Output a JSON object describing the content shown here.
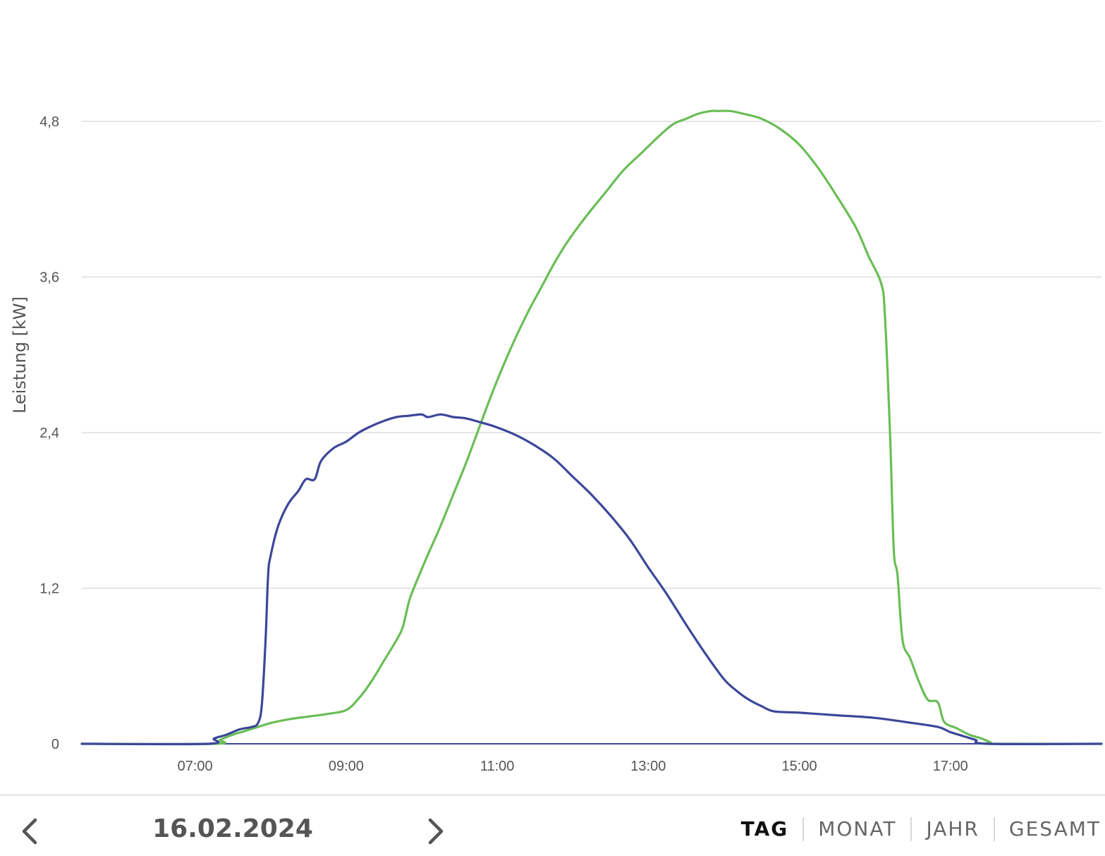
{
  "chart_data": {
    "type": "line",
    "ylabel": "Leistung [kW]",
    "xlabel": "",
    "title": "",
    "x_range": [
      "05:30",
      "19:00"
    ],
    "ylim": [
      0,
      4.8
    ],
    "y_ticks": [
      {
        "value": 0,
        "label": "0"
      },
      {
        "value": 1.2,
        "label": "1,2"
      },
      {
        "value": 2.4,
        "label": "2,4"
      },
      {
        "value": 3.6,
        "label": "3,6"
      },
      {
        "value": 4.8,
        "label": "4,8"
      }
    ],
    "x_ticks": [
      "07:00",
      "09:00",
      "11:00",
      "13:00",
      "15:00",
      "17:00"
    ],
    "grid": true,
    "series": [
      {
        "color": "#3b4799",
        "points": [
          [
            "05:30",
            0
          ],
          [
            "07:10",
            0
          ],
          [
            "07:15",
            0.04
          ],
          [
            "07:25",
            0.07
          ],
          [
            "07:35",
            0.11
          ],
          [
            "07:45",
            0.13
          ],
          [
            "07:50",
            0.16
          ],
          [
            "07:53",
            0.3
          ],
          [
            "07:56",
            0.8
          ],
          [
            "07:58",
            1.3
          ],
          [
            "08:00",
            1.45
          ],
          [
            "08:06",
            1.68
          ],
          [
            "08:14",
            1.85
          ],
          [
            "08:22",
            1.95
          ],
          [
            "08:28",
            2.04
          ],
          [
            "08:35",
            2.04
          ],
          [
            "08:40",
            2.18
          ],
          [
            "08:50",
            2.28
          ],
          [
            "09:00",
            2.33
          ],
          [
            "09:10",
            2.4
          ],
          [
            "09:20",
            2.45
          ],
          [
            "09:30",
            2.49
          ],
          [
            "09:40",
            2.52
          ],
          [
            "09:50",
            2.53
          ],
          [
            "10:00",
            2.54
          ],
          [
            "10:05",
            2.52
          ],
          [
            "10:15",
            2.54
          ],
          [
            "10:25",
            2.52
          ],
          [
            "10:35",
            2.51
          ],
          [
            "10:50",
            2.47
          ],
          [
            "11:00",
            2.44
          ],
          [
            "11:15",
            2.38
          ],
          [
            "11:30",
            2.3
          ],
          [
            "11:45",
            2.2
          ],
          [
            "12:00",
            2.06
          ],
          [
            "12:15",
            1.92
          ],
          [
            "12:30",
            1.76
          ],
          [
            "12:45",
            1.58
          ],
          [
            "13:00",
            1.36
          ],
          [
            "13:15",
            1.15
          ],
          [
            "13:30",
            0.92
          ],
          [
            "13:45",
            0.7
          ],
          [
            "14:00",
            0.5
          ],
          [
            "14:10",
            0.41
          ],
          [
            "14:20",
            0.34
          ],
          [
            "14:30",
            0.29
          ],
          [
            "14:40",
            0.25
          ],
          [
            "15:00",
            0.24
          ],
          [
            "15:30",
            0.22
          ],
          [
            "16:00",
            0.2
          ],
          [
            "16:30",
            0.16
          ],
          [
            "16:50",
            0.13
          ],
          [
            "17:00",
            0.09
          ],
          [
            "17:10",
            0.06
          ],
          [
            "17:20",
            0.03
          ],
          [
            "17:30",
            0
          ],
          [
            "19:00",
            0
          ]
        ]
      },
      {
        "color": "#6abd56",
        "points": [
          [
            "05:30",
            0
          ],
          [
            "07:15",
            0
          ],
          [
            "07:20",
            0.03
          ],
          [
            "07:30",
            0.07
          ],
          [
            "07:40",
            0.1
          ],
          [
            "07:50",
            0.13
          ],
          [
            "08:00",
            0.16
          ],
          [
            "08:15",
            0.19
          ],
          [
            "08:30",
            0.21
          ],
          [
            "08:45",
            0.23
          ],
          [
            "09:00",
            0.26
          ],
          [
            "09:10",
            0.35
          ],
          [
            "09:20",
            0.48
          ],
          [
            "09:30",
            0.64
          ],
          [
            "09:40",
            0.8
          ],
          [
            "09:45",
            0.9
          ],
          [
            "09:50",
            1.1
          ],
          [
            "09:55",
            1.23
          ],
          [
            "10:05",
            1.46
          ],
          [
            "10:15",
            1.68
          ],
          [
            "10:25",
            1.92
          ],
          [
            "10:35",
            2.16
          ],
          [
            "10:45",
            2.42
          ],
          [
            "10:55",
            2.68
          ],
          [
            "11:05",
            2.92
          ],
          [
            "11:15",
            3.14
          ],
          [
            "11:25",
            3.34
          ],
          [
            "11:35",
            3.52
          ],
          [
            "11:45",
            3.7
          ],
          [
            "11:55",
            3.86
          ],
          [
            "12:10",
            4.06
          ],
          [
            "12:25",
            4.24
          ],
          [
            "12:40",
            4.42
          ],
          [
            "12:55",
            4.56
          ],
          [
            "13:10",
            4.7
          ],
          [
            "13:20",
            4.78
          ],
          [
            "13:30",
            4.82
          ],
          [
            "13:40",
            4.86
          ],
          [
            "13:50",
            4.88
          ],
          [
            "13:55",
            4.88
          ],
          [
            "14:05",
            4.88
          ],
          [
            "14:15",
            4.86
          ],
          [
            "14:30",
            4.82
          ],
          [
            "14:45",
            4.74
          ],
          [
            "15:00",
            4.62
          ],
          [
            "15:15",
            4.44
          ],
          [
            "15:30",
            4.22
          ],
          [
            "15:45",
            3.98
          ],
          [
            "15:55",
            3.76
          ],
          [
            "16:05",
            3.55
          ],
          [
            "16:08",
            3.3
          ],
          [
            "16:12",
            2.4
          ],
          [
            "16:15",
            1.5
          ],
          [
            "16:18",
            1.3
          ],
          [
            "16:22",
            0.8
          ],
          [
            "16:28",
            0.66
          ],
          [
            "16:35",
            0.48
          ],
          [
            "16:42",
            0.34
          ],
          [
            "16:50",
            0.32
          ],
          [
            "16:55",
            0.17
          ],
          [
            "17:05",
            0.12
          ],
          [
            "17:15",
            0.07
          ],
          [
            "17:25",
            0.04
          ],
          [
            "17:32",
            0.01
          ],
          [
            "17:35",
            0
          ],
          [
            "19:00",
            0
          ]
        ]
      }
    ]
  },
  "bottom_bar": {
    "date": "16.02.2024",
    "tabs": [
      {
        "label": "TAG",
        "active": true
      },
      {
        "label": "MONAT",
        "active": false
      },
      {
        "label": "JAHR",
        "active": false
      },
      {
        "label": "GESAMT",
        "active": false
      }
    ]
  }
}
